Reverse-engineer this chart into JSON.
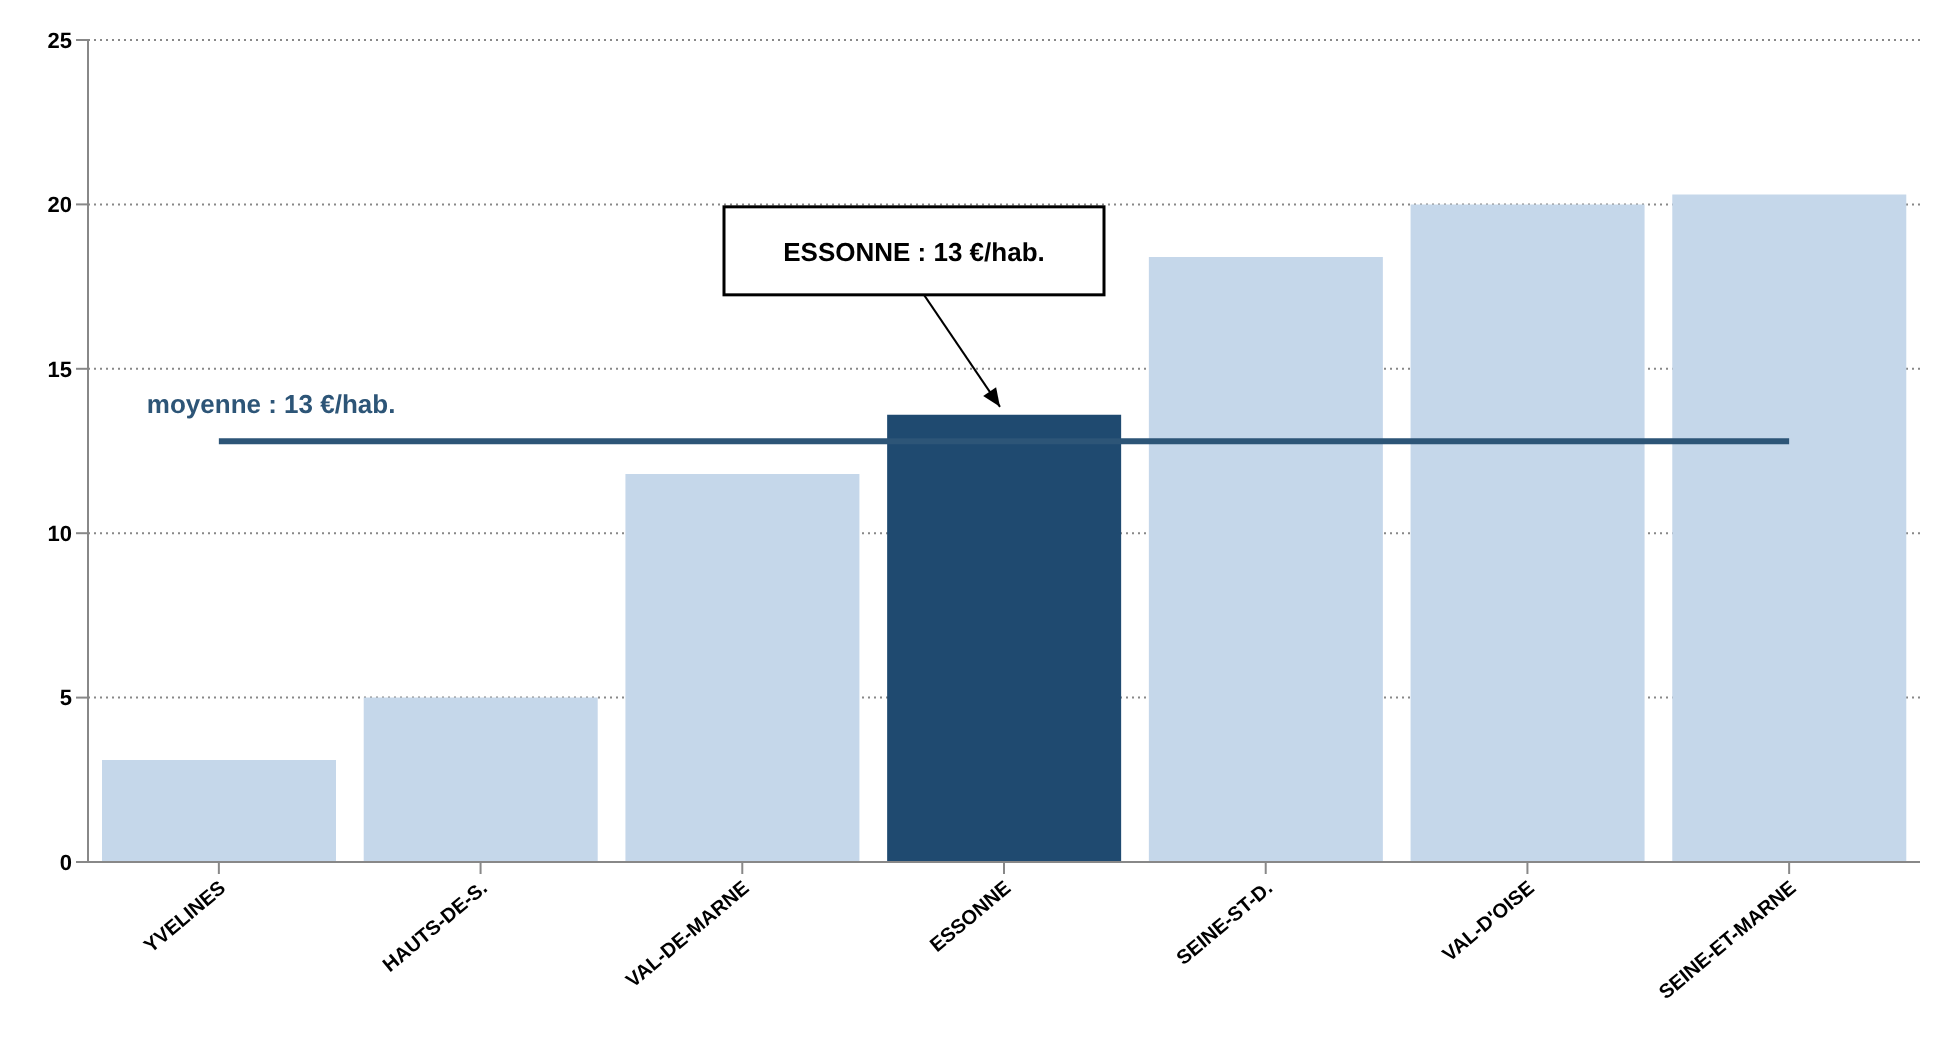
{
  "chart_data": {
    "type": "bar",
    "categories": [
      "YVELINES",
      "HAUTS-DE-S.",
      "VAL-DE-MARNE",
      "ESSONNE",
      "SEINE-ST-D.",
      "VAL-D'OISE",
      "SEINE-ET-MARNE"
    ],
    "values": [
      3.1,
      5.0,
      11.8,
      13.6,
      18.4,
      20.0,
      20.3
    ],
    "colors": [
      "#c5d7ea",
      "#c5d7ea",
      "#c5d7ea",
      "#1f4a70",
      "#c5d7ea",
      "#c5d7ea",
      "#c5d7ea"
    ],
    "ylim": [
      0,
      25
    ],
    "yticks": [
      0,
      5,
      10,
      15,
      20,
      25
    ],
    "grid": "y",
    "ref_lines": [
      {
        "axis": "y",
        "value": 12.8,
        "label": "moyenne : 13 €/hab.",
        "color": "#2d5577"
      }
    ],
    "annotations": [
      {
        "text": "ESSONNE : 13 €/hab.",
        "x": "ESSONNE",
        "y": 13.6
      }
    ]
  }
}
